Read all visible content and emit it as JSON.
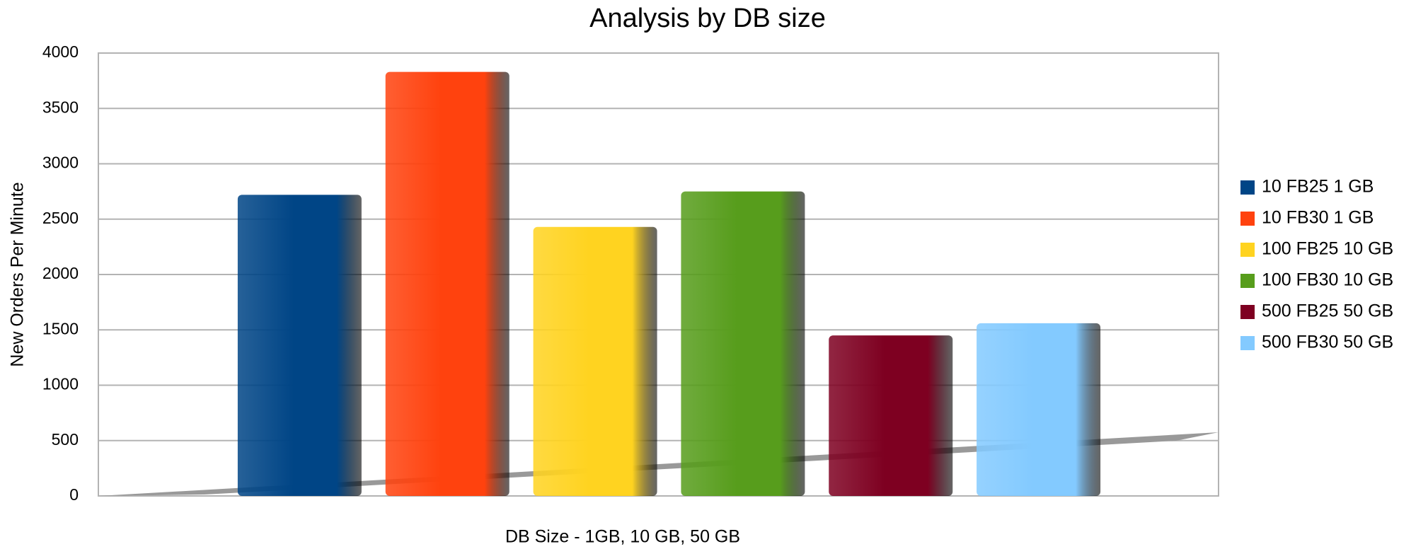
{
  "chart_data": {
    "type": "bar",
    "title": "Analysis by DB size",
    "x_label": "DB Size - 1GB, 10 GB, 50 GB",
    "y_label": "New Orders Per Minute",
    "series": [
      {
        "name": "10 FB25 1 GB",
        "color": "#004586",
        "values": [
          2720
        ]
      },
      {
        "name": "10 FB30 1 GB",
        "color": "#ff420e",
        "values": [
          3830
        ]
      },
      {
        "name": "100 FB25 10 GB",
        "color": "#ffd320",
        "values": [
          2430
        ]
      },
      {
        "name": "100 FB30 10 GB",
        "color": "#579d1c",
        "values": [
          2750
        ]
      },
      {
        "name": "500 FB25 50 GB",
        "color": "#7e0021",
        "values": [
          1450
        ]
      },
      {
        "name": "500 FB30 50 GB",
        "color": "#83caff",
        "values": [
          1560
        ]
      }
    ],
    "ylim": [
      0,
      4000
    ],
    "yticks": [
      0,
      500,
      1000,
      1500,
      2000,
      2500,
      3000,
      3500,
      4000
    ],
    "grid": true,
    "legend": "right"
  }
}
